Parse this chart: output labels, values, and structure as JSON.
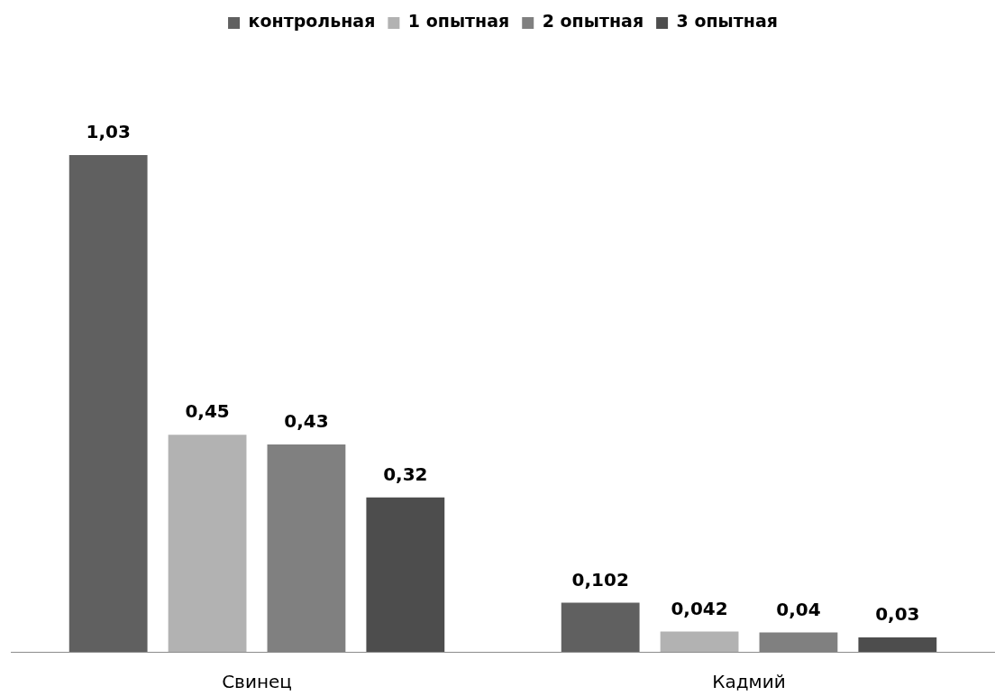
{
  "chart_data": {
    "type": "bar",
    "categories": [
      "Свинец",
      "Кадмий"
    ],
    "series": [
      {
        "name": "контрольная",
        "color": "#606060",
        "values": [
          1.03,
          0.102
        ],
        "value_labels": [
          "1,03",
          "0,102"
        ]
      },
      {
        "name": "1 опытная",
        "color": "#b2b2b2",
        "values": [
          0.45,
          0.042
        ],
        "value_labels": [
          "0,45",
          "0,042"
        ]
      },
      {
        "name": "2 опытная",
        "color": "#808080",
        "values": [
          0.43,
          0.04
        ],
        "value_labels": [
          "0,43",
          "0,04"
        ]
      },
      {
        "name": "3 опытная",
        "color": "#4d4d4d",
        "values": [
          0.32,
          0.03
        ],
        "value_labels": [
          "0,32",
          "0,03"
        ]
      }
    ],
    "tick_labels": "x",
    "grid": false,
    "legend": "top"
  }
}
